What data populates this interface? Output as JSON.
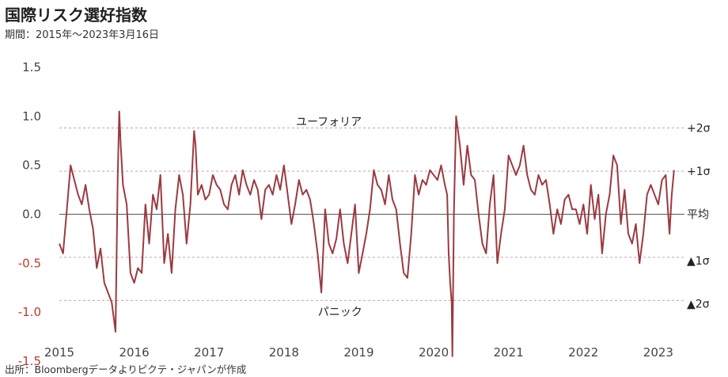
{
  "header": {
    "title": "国際リスク選好指数",
    "subtitle": "期間：2015年～2023年3月16日"
  },
  "footer": {
    "source": "出所：Bloombergデータよりピクテ・ジャパンが作成"
  },
  "colors": {
    "series": "#9b3a40",
    "positive_tick": "#444444",
    "negative_tick": "#c0392b",
    "sigma_line": "#c9a0b0",
    "mean_line": "#555555"
  },
  "chart_data": {
    "type": "line",
    "title": "国際リスク選好指数",
    "xlim": [
      2015,
      2023.35
    ],
    "ylim": [
      -1.5,
      1.5
    ],
    "grid": false,
    "x_tick_labels": [
      "2015",
      "2016",
      "2017",
      "2018",
      "2019",
      "2020",
      "2021",
      "2022",
      "2023"
    ],
    "y_tick_labels": [
      "1.5",
      "1.0",
      "0.5",
      "0.0",
      "-0.5",
      "-1.0",
      "-1.5"
    ],
    "reference_lines": [
      {
        "label": "+2σ",
        "value": 0.88
      },
      {
        "label": "+1σ",
        "value": 0.44
      },
      {
        "label": "平均",
        "value": 0.0
      },
      {
        "label": "▲1σ",
        "value": -0.44
      },
      {
        "label": "▲2σ",
        "value": -0.88
      }
    ],
    "annotations": [
      {
        "text": "ユーフォリア",
        "x": 2018.6,
        "y": 0.88
      },
      {
        "text": "パニック",
        "x": 2018.75,
        "y": -1.06
      }
    ],
    "series": [
      {
        "x": [
          2015.0,
          2015.05,
          2015.1,
          2015.15,
          2015.2,
          2015.25,
          2015.3,
          2015.35,
          2015.4,
          2015.45,
          2015.5,
          2015.55,
          2015.6,
          2015.65,
          2015.7,
          2015.75,
          2015.78,
          2015.8,
          2015.82,
          2015.85,
          2015.9,
          2015.95,
          2016.0,
          2016.05,
          2016.1,
          2016.15,
          2016.2,
          2016.25,
          2016.3,
          2016.35,
          2016.4,
          2016.45,
          2016.5,
          2016.55,
          2016.6,
          2016.65,
          2016.7,
          2016.75,
          2016.8,
          2016.82,
          2016.85,
          2016.9,
          2016.95,
          2017.0,
          2017.05,
          2017.1,
          2017.15,
          2017.2,
          2017.25,
          2017.3,
          2017.35,
          2017.4,
          2017.45,
          2017.5,
          2017.55,
          2017.6,
          2017.65,
          2017.7,
          2017.75,
          2017.8,
          2017.85,
          2017.9,
          2017.95,
          2018.0,
          2018.05,
          2018.1,
          2018.15,
          2018.2,
          2018.25,
          2018.3,
          2018.35,
          2018.4,
          2018.45,
          2018.5,
          2018.55,
          2018.6,
          2018.65,
          2018.7,
          2018.75,
          2018.8,
          2018.85,
          2018.9,
          2018.95,
          2019.0,
          2019.05,
          2019.1,
          2019.15,
          2019.2,
          2019.25,
          2019.3,
          2019.35,
          2019.4,
          2019.45,
          2019.5,
          2019.55,
          2019.6,
          2019.65,
          2019.7,
          2019.75,
          2019.8,
          2019.85,
          2019.9,
          2019.95,
          2020.0,
          2020.05,
          2020.1,
          2020.15,
          2020.18,
          2020.2,
          2020.22,
          2020.24,
          2020.25,
          2020.27,
          2020.3,
          2020.35,
          2020.4,
          2020.45,
          2020.5,
          2020.55,
          2020.6,
          2020.65,
          2020.7,
          2020.75,
          2020.8,
          2020.85,
          2020.9,
          2020.95,
          2021.0,
          2021.05,
          2021.1,
          2021.15,
          2021.2,
          2021.25,
          2021.3,
          2021.35,
          2021.4,
          2021.45,
          2021.5,
          2021.55,
          2021.6,
          2021.65,
          2021.7,
          2021.75,
          2021.8,
          2021.85,
          2021.9,
          2021.95,
          2022.0,
          2022.05,
          2022.1,
          2022.15,
          2022.2,
          2022.25,
          2022.3,
          2022.35,
          2022.4,
          2022.45,
          2022.5,
          2022.55,
          2022.6,
          2022.65,
          2022.7,
          2022.75,
          2022.8,
          2022.85,
          2022.9,
          2022.95,
          2023.0,
          2023.05,
          2023.1,
          2023.12,
          2023.15,
          2023.18,
          2023.21
        ],
        "y": [
          -0.3,
          -0.4,
          0.05,
          0.5,
          0.35,
          0.2,
          0.1,
          0.3,
          0.05,
          -0.15,
          -0.55,
          -0.35,
          -0.7,
          -0.8,
          -0.9,
          -1.2,
          0.4,
          1.05,
          0.7,
          0.3,
          0.1,
          -0.6,
          -0.7,
          -0.55,
          -0.6,
          0.1,
          -0.3,
          0.2,
          0.05,
          0.4,
          -0.5,
          -0.2,
          -0.6,
          0.05,
          0.4,
          0.2,
          -0.3,
          0.1,
          0.85,
          0.7,
          0.2,
          0.3,
          0.15,
          0.2,
          0.4,
          0.3,
          0.25,
          0.1,
          0.05,
          0.3,
          0.4,
          0.2,
          0.45,
          0.3,
          0.2,
          0.35,
          0.25,
          -0.05,
          0.25,
          0.3,
          0.2,
          0.4,
          0.25,
          0.5,
          0.2,
          -0.1,
          0.1,
          0.35,
          0.2,
          0.25,
          0.15,
          -0.1,
          -0.4,
          -0.8,
          0.05,
          -0.3,
          -0.4,
          -0.25,
          0.05,
          -0.3,
          -0.5,
          -0.2,
          0.1,
          -0.6,
          -0.4,
          -0.2,
          0.05,
          0.45,
          0.3,
          0.25,
          0.1,
          0.4,
          0.15,
          0.05,
          -0.3,
          -0.6,
          -0.65,
          -0.2,
          0.4,
          0.2,
          0.35,
          0.3,
          0.45,
          0.4,
          0.35,
          0.5,
          0.3,
          0.2,
          -0.4,
          -0.7,
          -0.9,
          -1.45,
          0.0,
          1.0,
          0.7,
          0.3,
          0.7,
          0.4,
          0.35,
          0.0,
          -0.3,
          -0.4,
          0.1,
          0.4,
          -0.5,
          -0.2,
          0.05,
          0.6,
          0.5,
          0.4,
          0.5,
          0.7,
          0.4,
          0.25,
          0.2,
          0.4,
          0.3,
          0.35,
          0.1,
          -0.2,
          0.05,
          -0.1,
          0.15,
          0.2,
          0.05,
          0.05,
          -0.1,
          0.1,
          -0.2,
          0.3,
          -0.05,
          0.2,
          -0.4,
          0.0,
          0.2,
          0.6,
          0.5,
          -0.1,
          0.25,
          -0.2,
          -0.3,
          -0.1,
          -0.5,
          -0.2,
          0.2,
          0.3,
          0.2,
          0.1,
          0.35,
          0.4,
          0.15,
          -0.2,
          0.2,
          0.45
        ]
      }
    ]
  }
}
